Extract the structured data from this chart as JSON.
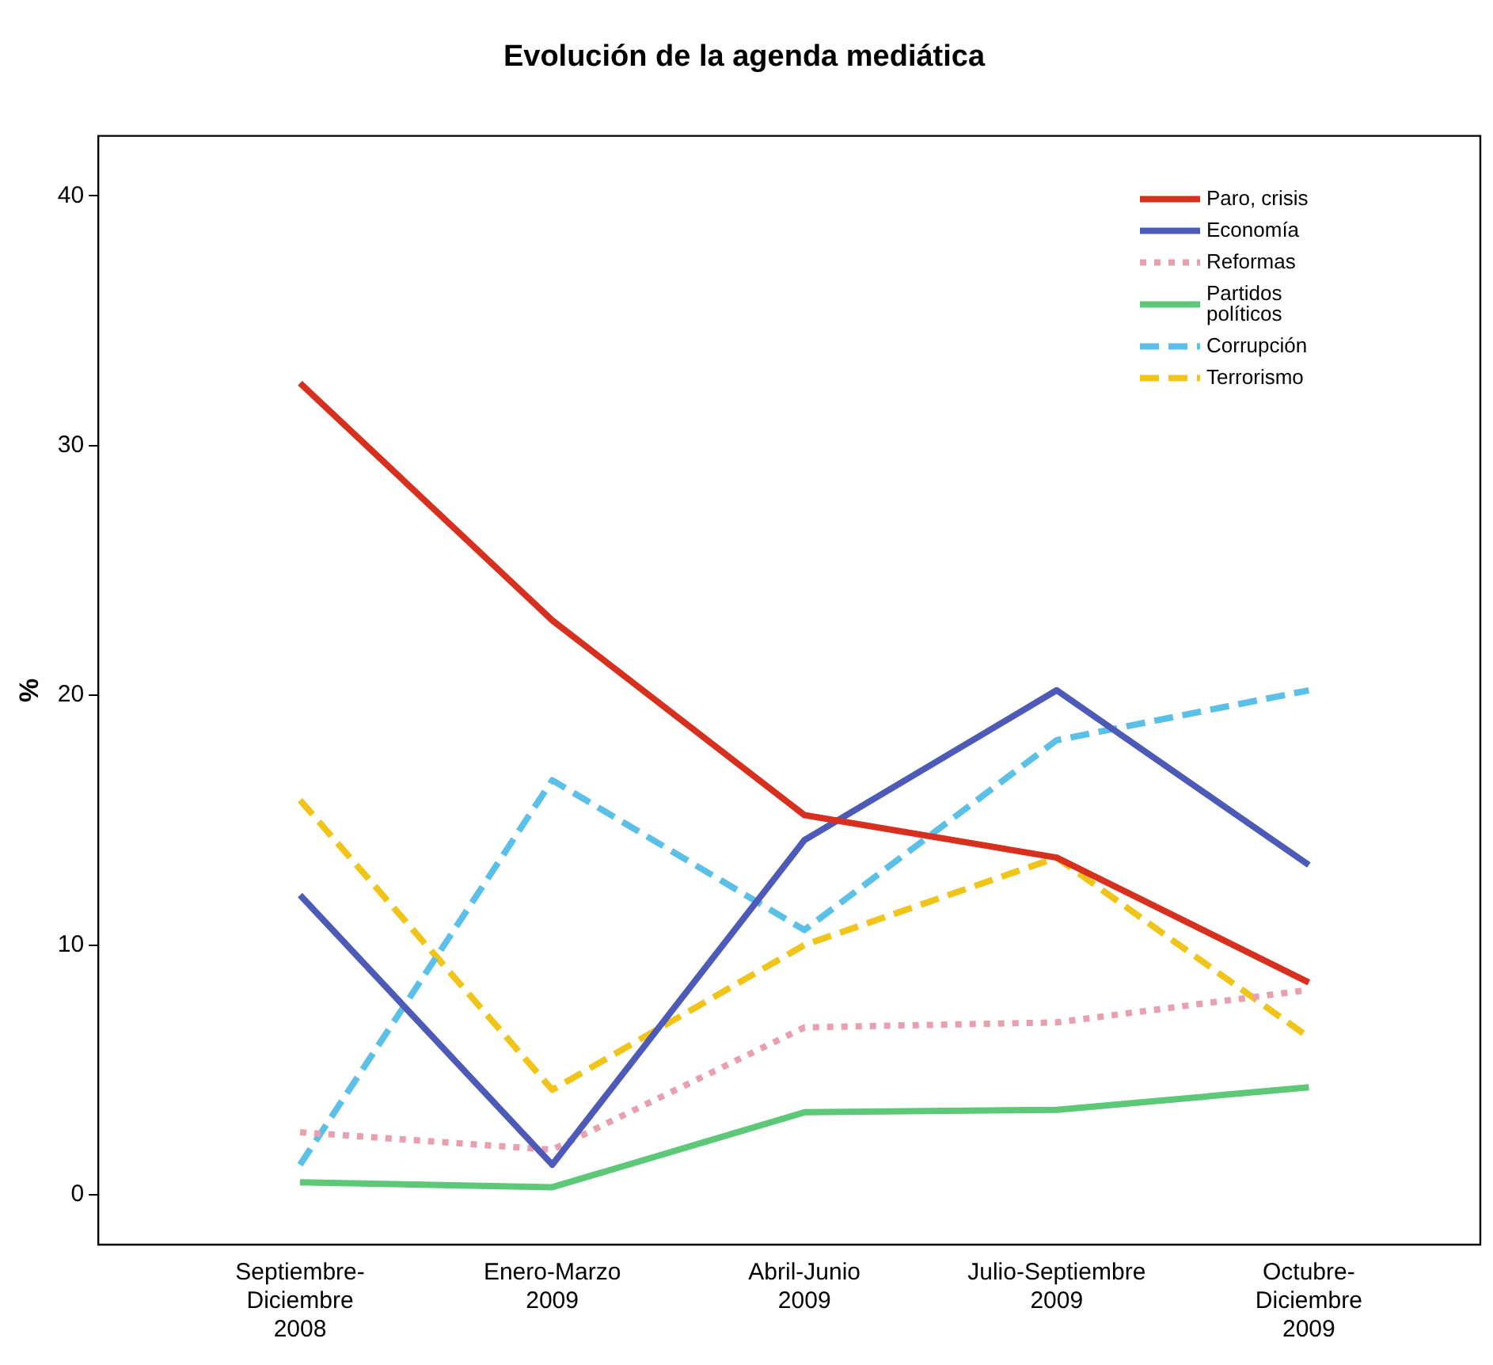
{
  "chart_data": {
    "type": "line",
    "title": "Evolución de la agenda mediática",
    "ylabel": "%",
    "categories": [
      "Septiembre-Diciembre 2008",
      "Enero-Marzo 2009",
      "Abril-Junio 2009",
      "Julio-Septiembre 2009",
      "Octubre-Diciembre 2009"
    ],
    "series": [
      {
        "name": "Paro, crisis",
        "color": "#d7301f",
        "values": [
          32.5,
          23.0,
          15.2,
          13.5,
          8.5
        ]
      },
      {
        "name": "Economía",
        "color": "#4e5ab8",
        "values": [
          12.0,
          1.2,
          14.2,
          20.2,
          13.2
        ]
      },
      {
        "name": "Reformas",
        "color": "#e8a0b0",
        "line_style": "dotted",
        "values": [
          2.5,
          1.8,
          6.7,
          6.9,
          8.2
        ]
      },
      {
        "name": "Partidos políticos",
        "color": "#5cc878",
        "values": [
          0.5,
          0.3,
          3.3,
          3.4,
          4.3
        ]
      },
      {
        "name": "Corrupción",
        "color": "#5bc0e8",
        "line_style": "dashed",
        "values": [
          1.2,
          16.6,
          10.6,
          18.2,
          20.2
        ]
      },
      {
        "name": "Terrorismo",
        "color": "#f0c419",
        "line_style": "dashed",
        "values": [
          15.8,
          4.2,
          10.0,
          13.5,
          6.3
        ]
      }
    ],
    "ylim": [
      -2,
      42.4
    ],
    "yticks": [
      0,
      10,
      20,
      30,
      40
    ],
    "grid": false,
    "legend": "top right",
    "marker": "none"
  }
}
